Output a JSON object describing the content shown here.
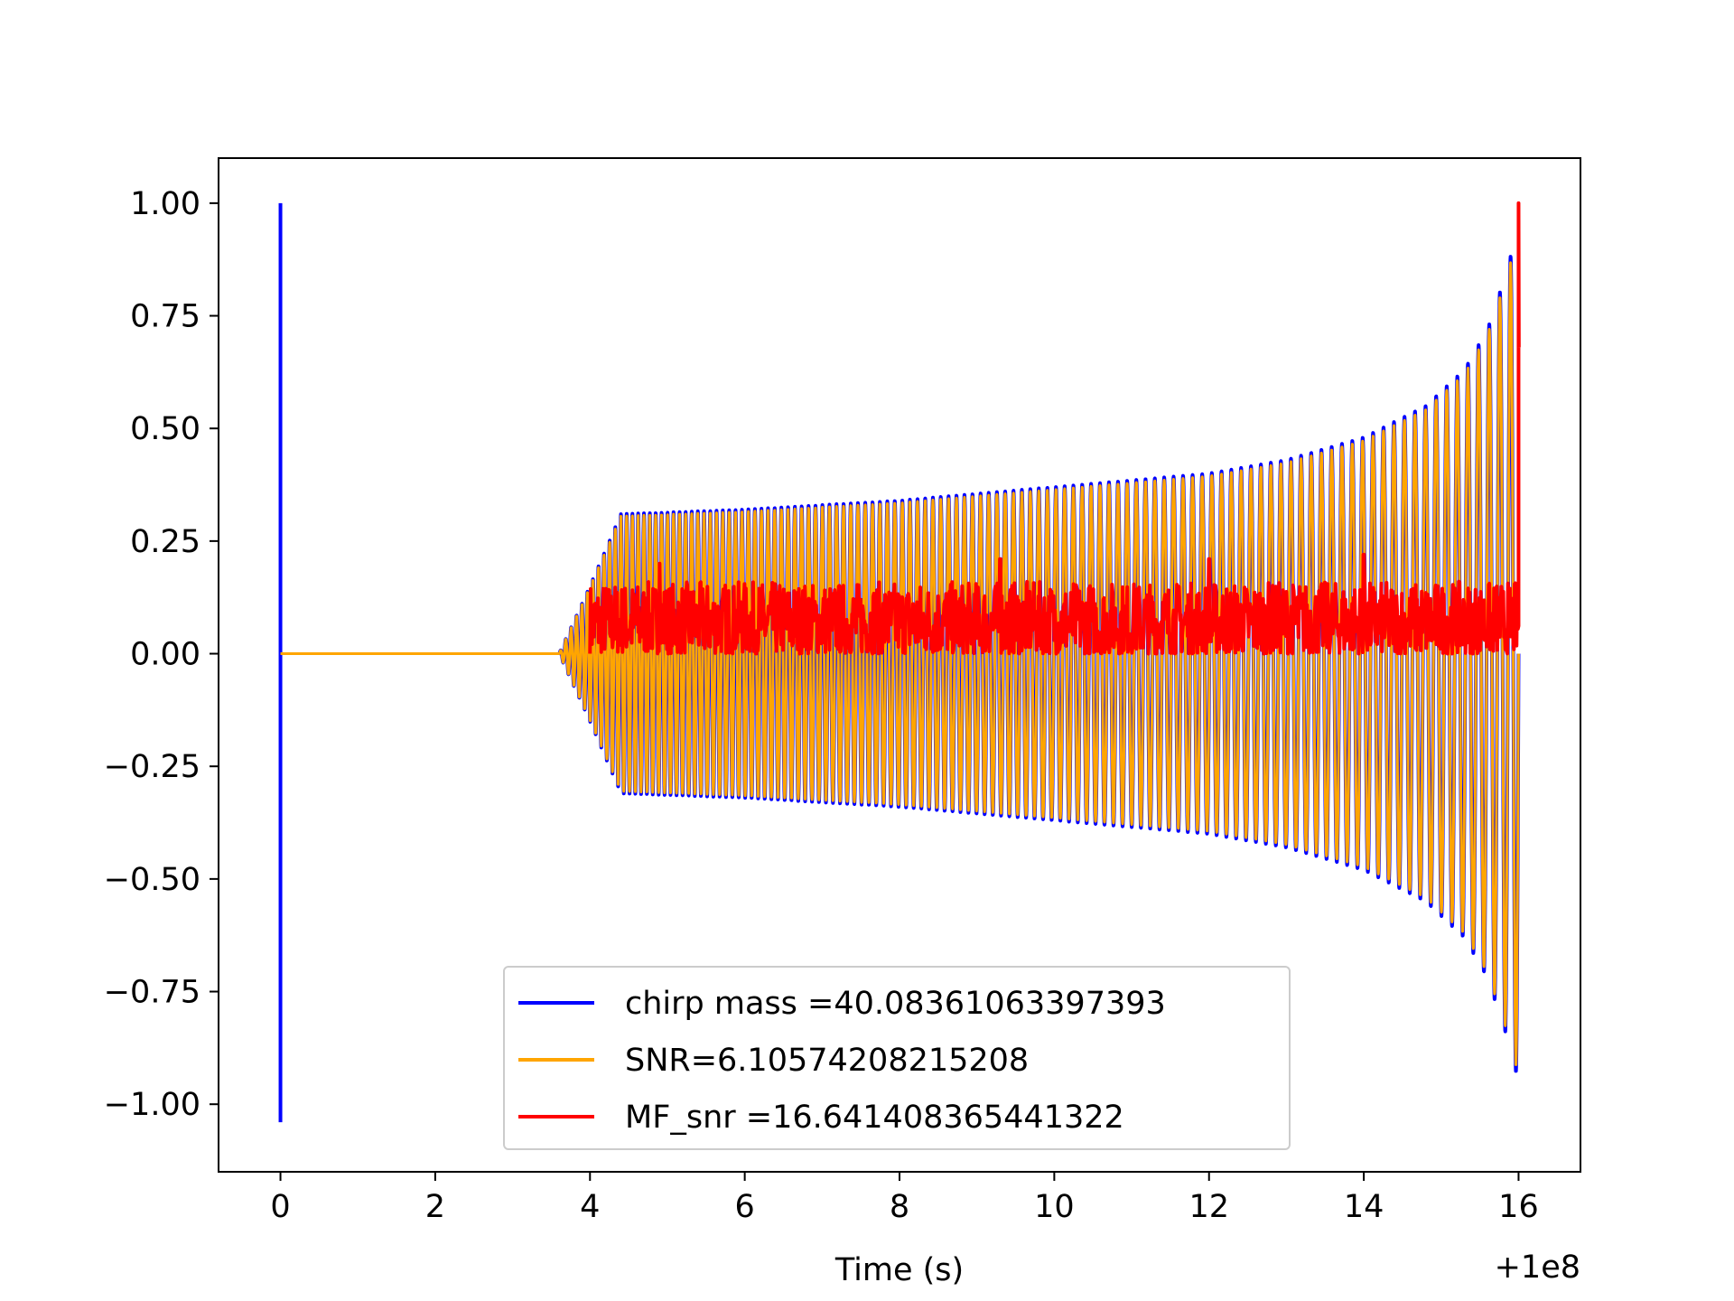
{
  "chart_data": {
    "type": "line",
    "title": "",
    "xlabel": "Time (s)",
    "ylabel": "",
    "x_offset_label": "+1e8",
    "xlim": [
      -0.8,
      16.8
    ],
    "ylim": [
      -1.15,
      1.1
    ],
    "xticks": [
      0,
      2,
      4,
      6,
      8,
      10,
      12,
      14,
      16
    ],
    "xtick_labels": [
      "0",
      "2",
      "4",
      "6",
      "8",
      "10",
      "12",
      "14",
      "16"
    ],
    "yticks": [
      1.0,
      0.75,
      0.5,
      0.25,
      0.0,
      -0.25,
      -0.5,
      -0.75,
      -1.0
    ],
    "ytick_labels": [
      "1.00",
      "0.75",
      "0.50",
      "0.25",
      "0.00",
      "−0.25",
      "−0.50",
      "−0.75",
      "−1.00"
    ],
    "grid": false,
    "legend_position": "bottom-center",
    "series": [
      {
        "name": "chirp mass =40.08361063397393",
        "color": "#0000ff",
        "style": "spike-then-chirp",
        "spike_x": 0.0,
        "spike_range": [
          -1.04,
          1.0
        ],
        "start_x": 3.6,
        "end_x": 16.0,
        "envelope": [
          [
            3.6,
            0.0
          ],
          [
            4.0,
            0.15
          ],
          [
            4.4,
            0.31
          ],
          [
            6,
            0.32
          ],
          [
            8,
            0.34
          ],
          [
            10,
            0.37
          ],
          [
            12,
            0.4
          ],
          [
            13,
            0.43
          ],
          [
            14,
            0.48
          ],
          [
            14.8,
            0.55
          ],
          [
            15.3,
            0.63
          ],
          [
            15.6,
            0.72
          ],
          [
            15.85,
            0.85
          ],
          [
            16.0,
            0.95
          ]
        ],
        "cycles": 120
      },
      {
        "name": "SNR=6.10574208215208",
        "color": "#ffa500",
        "style": "flat-then-chirp",
        "start_x": 0.0,
        "onset_x": 3.6,
        "end_x": 16.0,
        "envelope": [
          [
            3.6,
            0.0
          ],
          [
            4.0,
            0.15
          ],
          [
            4.4,
            0.31
          ],
          [
            6,
            0.32
          ],
          [
            8,
            0.34
          ],
          [
            10,
            0.37
          ],
          [
            12,
            0.4
          ],
          [
            13,
            0.43
          ],
          [
            14,
            0.48
          ],
          [
            14.8,
            0.55
          ],
          [
            15.3,
            0.63
          ],
          [
            15.6,
            0.72
          ],
          [
            15.85,
            0.85
          ],
          [
            16.0,
            0.95
          ]
        ],
        "cycles": 120
      },
      {
        "name": "MF_snr =16.641408365441322",
        "color": "#ff0000",
        "style": "noise-band",
        "start_x": 4.0,
        "end_x": 16.0,
        "band": [
          0.0,
          0.16
        ],
        "peaks": [
          [
            4.9,
            0.2
          ],
          [
            9.3,
            0.21
          ],
          [
            12.0,
            0.21
          ],
          [
            14.0,
            0.22
          ]
        ],
        "final_spike": [
          16.0,
          1.0
        ]
      }
    ]
  }
}
